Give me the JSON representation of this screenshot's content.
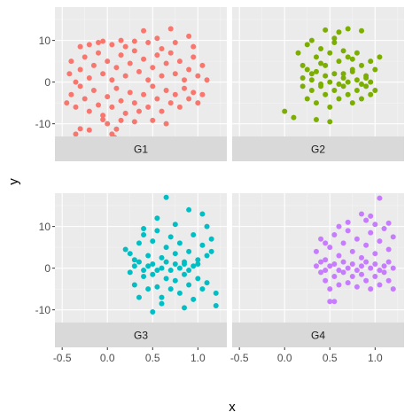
{
  "chart_data": {
    "type": "scatter",
    "xlabel": "x",
    "ylabel": "y",
    "xlim": [
      -0.58,
      1.32
    ],
    "ylim": [
      -19,
      18
    ],
    "x_ticks": [
      {
        "value": -0.5,
        "label": "-0.5"
      },
      {
        "value": 0.0,
        "label": "0.0"
      },
      {
        "value": 0.5,
        "label": "0.5"
      },
      {
        "value": 1.0,
        "label": "1.0"
      }
    ],
    "y_ticks": [
      {
        "value": 10,
        "label": "10"
      },
      {
        "value": 0,
        "label": "0"
      },
      {
        "value": -10,
        "label": "-10"
      }
    ],
    "grid": true,
    "legend": "none",
    "facet_strip_position": "bottom",
    "panel_background": "#ebebeb",
    "strip_background": "#d9d9d9",
    "grid_major_color": "#ffffff",
    "facets": [
      {
        "label": "G1",
        "color": "#f8766d",
        "points": [
          [
            -0.35,
            -12.5
          ],
          [
            -0.3,
            -11.2
          ],
          [
            -0.2,
            -11.5
          ],
          [
            0.05,
            -12.5
          ],
          [
            0.08,
            -13.3
          ],
          [
            0.1,
            -11.3
          ],
          [
            0.0,
            -10.0
          ],
          [
            -0.05,
            -9.0
          ],
          [
            0.15,
            -9.2
          ],
          [
            0.3,
            -9.5
          ],
          [
            0.5,
            -9.2
          ],
          [
            0.65,
            -10.0
          ],
          [
            -0.45,
            -5.0
          ],
          [
            -0.4,
            -3.0
          ],
          [
            -0.35,
            -6.0
          ],
          [
            -0.3,
            -1.0
          ],
          [
            -0.25,
            -4.0
          ],
          [
            -0.2,
            -7.0
          ],
          [
            -0.15,
            -2.0
          ],
          [
            -0.1,
            -5.5
          ],
          [
            -0.05,
            -8.0
          ],
          [
            0.0,
            -3.5
          ],
          [
            0.05,
            -6.0
          ],
          [
            0.1,
            -1.5
          ],
          [
            0.15,
            -4.5
          ],
          [
            0.2,
            -7.5
          ],
          [
            0.25,
            -2.5
          ],
          [
            0.3,
            -5.0
          ],
          [
            0.35,
            -7.0
          ],
          [
            0.4,
            -3.0
          ],
          [
            0.45,
            -6.0
          ],
          [
            0.5,
            -1.0
          ],
          [
            0.55,
            -4.0
          ],
          [
            0.6,
            -7.0
          ],
          [
            0.65,
            -2.0
          ],
          [
            0.7,
            -5.0
          ],
          [
            0.75,
            -3.0
          ],
          [
            0.8,
            -6.0
          ],
          [
            0.85,
            -1.5
          ],
          [
            0.9,
            -4.0
          ],
          [
            0.95,
            -2.5
          ],
          [
            1.0,
            -5.0
          ],
          [
            1.05,
            -3.0
          ],
          [
            -0.42,
            2.0
          ],
          [
            -0.4,
            5.0
          ],
          [
            -0.35,
            0.0
          ],
          [
            -0.3,
            3.0
          ],
          [
            -0.25,
            6.0
          ],
          [
            -0.2,
            1.0
          ],
          [
            -0.15,
            4.0
          ],
          [
            -0.1,
            7.0
          ],
          [
            -0.05,
            2.0
          ],
          [
            0.0,
            5.0
          ],
          [
            0.05,
            0.5
          ],
          [
            0.1,
            3.5
          ],
          [
            0.15,
            6.5
          ],
          [
            0.2,
            1.5
          ],
          [
            0.25,
            4.5
          ],
          [
            0.3,
            7.5
          ],
          [
            0.35,
            2.5
          ],
          [
            0.4,
            5.5
          ],
          [
            0.45,
            0.5
          ],
          [
            0.5,
            3.5
          ],
          [
            0.55,
            6.5
          ],
          [
            0.6,
            1.5
          ],
          [
            0.65,
            4.5
          ],
          [
            0.7,
            7.0
          ],
          [
            0.75,
            2.0
          ],
          [
            0.8,
            5.0
          ],
          [
            0.85,
            0.5
          ],
          [
            0.9,
            3.0
          ],
          [
            0.95,
            6.0
          ],
          [
            1.0,
            1.5
          ],
          [
            1.05,
            4.0
          ],
          [
            1.1,
            0.5
          ],
          [
            -0.3,
            8.5
          ],
          [
            -0.1,
            9.5
          ],
          [
            0.05,
            9.0
          ],
          [
            0.2,
            8.5
          ],
          [
            0.45,
            9.5
          ],
          [
            0.6,
            8.0
          ],
          [
            0.75,
            9.5
          ],
          [
            0.95,
            8.5
          ],
          [
            -0.05,
            9.8
          ],
          [
            0.15,
            10.0
          ],
          [
            0.4,
            12.3
          ],
          [
            0.7,
            12.8
          ],
          [
            0.55,
            10.5
          ],
          [
            0.9,
            11.0
          ],
          [
            0.3,
            9.8
          ],
          [
            -0.2,
            9.0
          ]
        ]
      },
      {
        "label": "G2",
        "color": "#7cae00",
        "points": [
          [
            0.15,
            7.0
          ],
          [
            0.2,
            4.0
          ],
          [
            0.25,
            9.0
          ],
          [
            0.3,
            2.0
          ],
          [
            0.35,
            6.0
          ],
          [
            0.4,
            8.0
          ],
          [
            0.45,
            4.0
          ],
          [
            0.5,
            7.0
          ],
          [
            0.55,
            9.5
          ],
          [
            0.6,
            5.0
          ],
          [
            0.65,
            2.0
          ],
          [
            0.7,
            6.0
          ],
          [
            0.75,
            3.0
          ],
          [
            0.8,
            7.0
          ],
          [
            0.85,
            4.0
          ],
          [
            0.9,
            1.0
          ],
          [
            0.95,
            5.0
          ],
          [
            1.0,
            3.0
          ],
          [
            1.05,
            6.0
          ],
          [
            0.2,
            -1.0
          ],
          [
            0.25,
            -4.0
          ],
          [
            0.3,
            -2.0
          ],
          [
            0.35,
            -5.0
          ],
          [
            0.4,
            -1.0
          ],
          [
            0.45,
            -3.0
          ],
          [
            0.5,
            -6.0
          ],
          [
            0.55,
            -2.0
          ],
          [
            0.6,
            -4.0
          ],
          [
            0.65,
            -1.0
          ],
          [
            0.7,
            -3.0
          ],
          [
            0.75,
            -5.0
          ],
          [
            0.8,
            -2.0
          ],
          [
            0.85,
            -4.0
          ],
          [
            0.9,
            -1.0
          ],
          [
            0.95,
            -3.0
          ],
          [
            1.0,
            -2.0
          ],
          [
            0.3,
            0.5
          ],
          [
            0.35,
            2.5
          ],
          [
            0.4,
            -0.5
          ],
          [
            0.45,
            1.5
          ],
          [
            0.5,
            0.0
          ],
          [
            0.55,
            2.0
          ],
          [
            0.6,
            -0.5
          ],
          [
            0.65,
            1.0
          ],
          [
            0.7,
            0.0
          ],
          [
            0.75,
            2.5
          ],
          [
            0.8,
            0.5
          ],
          [
            0.85,
            -0.5
          ],
          [
            0.9,
            1.5
          ],
          [
            0.95,
            0.0
          ],
          [
            0.0,
            -7.0
          ],
          [
            0.1,
            -8.5
          ],
          [
            0.35,
            -9.0
          ],
          [
            0.5,
            -9.5
          ],
          [
            0.45,
            12.5
          ],
          [
            0.6,
            12.0
          ],
          [
            0.7,
            12.8
          ],
          [
            0.85,
            12.3
          ],
          [
            0.3,
            10.0
          ],
          [
            0.55,
            10.5
          ],
          [
            0.25,
            3.0
          ],
          [
            0.75,
            5.5
          ],
          [
            0.4,
            4.5
          ],
          [
            0.65,
            7.5
          ],
          [
            0.2,
            1.0
          ]
        ]
      },
      {
        "label": "G3",
        "color": "#00bfc4",
        "points": [
          [
            0.2,
            4.5
          ],
          [
            0.3,
            2.0
          ],
          [
            0.35,
            6.0
          ],
          [
            0.4,
            8.0
          ],
          [
            0.45,
            3.0
          ],
          [
            0.5,
            6.5
          ],
          [
            0.55,
            9.0
          ],
          [
            0.6,
            2.5
          ],
          [
            0.65,
            5.0
          ],
          [
            0.7,
            7.5
          ],
          [
            0.75,
            3.5
          ],
          [
            0.8,
            6.0
          ],
          [
            0.85,
            1.0
          ],
          [
            0.9,
            4.0
          ],
          [
            0.95,
            8.0
          ],
          [
            1.0,
            2.0
          ],
          [
            1.05,
            5.5
          ],
          [
            1.1,
            3.0
          ],
          [
            1.15,
            7.0
          ],
          [
            0.25,
            -1.0
          ],
          [
            0.3,
            -4.0
          ],
          [
            0.35,
            -7.0
          ],
          [
            0.4,
            -2.0
          ],
          [
            0.45,
            -5.0
          ],
          [
            0.5,
            -1.5
          ],
          [
            0.55,
            -4.5
          ],
          [
            0.6,
            -7.0
          ],
          [
            0.65,
            -2.5
          ],
          [
            0.7,
            -5.0
          ],
          [
            0.75,
            -3.0
          ],
          [
            0.8,
            -6.0
          ],
          [
            0.85,
            -1.5
          ],
          [
            0.9,
            -4.0
          ],
          [
            0.95,
            -7.5
          ],
          [
            1.0,
            -2.5
          ],
          [
            1.05,
            -5.0
          ],
          [
            1.1,
            -3.5
          ],
          [
            1.2,
            -6.0
          ],
          [
            0.3,
            0.5
          ],
          [
            0.35,
            1.5
          ],
          [
            0.4,
            -0.5
          ],
          [
            0.45,
            0.5
          ],
          [
            0.5,
            1.0
          ],
          [
            0.55,
            -0.5
          ],
          [
            0.6,
            0.0
          ],
          [
            0.65,
            1.5
          ],
          [
            0.7,
            -0.5
          ],
          [
            0.75,
            1.0
          ],
          [
            0.8,
            0.0
          ],
          [
            0.85,
            1.5
          ],
          [
            0.9,
            -0.5
          ],
          [
            0.95,
            0.5
          ],
          [
            1.0,
            1.0
          ],
          [
            0.5,
            -10.5
          ],
          [
            0.85,
            -9.5
          ],
          [
            1.2,
            -9.0
          ],
          [
            0.65,
            17.0
          ],
          [
            0.9,
            14.0
          ],
          [
            1.05,
            13.0
          ],
          [
            0.55,
            12.0
          ],
          [
            0.75,
            10.5
          ],
          [
            1.1,
            10.0
          ],
          [
            0.4,
            9.5
          ],
          [
            0.25,
            3.5
          ],
          [
            1.15,
            4.0
          ],
          [
            0.6,
            -8.5
          ]
        ]
      },
      {
        "label": "G4",
        "color": "#c77cff",
        "points": [
          [
            0.35,
            4.0
          ],
          [
            0.4,
            7.0
          ],
          [
            0.45,
            2.0
          ],
          [
            0.5,
            5.0
          ],
          [
            0.55,
            8.0
          ],
          [
            0.6,
            3.0
          ],
          [
            0.65,
            6.0
          ],
          [
            0.7,
            9.0
          ],
          [
            0.75,
            4.0
          ],
          [
            0.8,
            7.0
          ],
          [
            0.85,
            2.5
          ],
          [
            0.9,
            5.5
          ],
          [
            0.95,
            8.5
          ],
          [
            1.0,
            3.5
          ],
          [
            1.05,
            6.5
          ],
          [
            1.1,
            9.5
          ],
          [
            1.15,
            4.5
          ],
          [
            1.2,
            7.5
          ],
          [
            0.4,
            -1.0
          ],
          [
            0.45,
            -3.0
          ],
          [
            0.5,
            -5.0
          ],
          [
            0.55,
            -2.0
          ],
          [
            0.6,
            -4.0
          ],
          [
            0.65,
            -1.0
          ],
          [
            0.7,
            -3.5
          ],
          [
            0.75,
            -2.0
          ],
          [
            0.8,
            -4.5
          ],
          [
            0.85,
            -1.5
          ],
          [
            0.9,
            -3.0
          ],
          [
            0.95,
            -5.0
          ],
          [
            1.0,
            -2.0
          ],
          [
            1.05,
            -4.0
          ],
          [
            1.1,
            -1.0
          ],
          [
            1.15,
            -3.0
          ],
          [
            1.2,
            -5.0
          ],
          [
            0.35,
            0.5
          ],
          [
            0.4,
            1.5
          ],
          [
            0.45,
            -0.5
          ],
          [
            0.5,
            0.5
          ],
          [
            0.55,
            1.0
          ],
          [
            0.6,
            -0.5
          ],
          [
            0.65,
            1.5
          ],
          [
            0.7,
            0.0
          ],
          [
            0.75,
            1.0
          ],
          [
            0.8,
            -0.5
          ],
          [
            0.85,
            0.5
          ],
          [
            0.9,
            1.5
          ],
          [
            0.95,
            0.0
          ],
          [
            1.0,
            1.0
          ],
          [
            1.05,
            -0.5
          ],
          [
            1.1,
            0.5
          ],
          [
            1.15,
            1.5
          ],
          [
            1.2,
            0.0
          ],
          [
            0.5,
            -8.0
          ],
          [
            0.55,
            -8.0
          ],
          [
            1.05,
            16.8
          ],
          [
            0.85,
            13.0
          ],
          [
            0.95,
            12.5
          ],
          [
            1.0,
            10.5
          ],
          [
            0.7,
            11.0
          ],
          [
            0.6,
            10.0
          ],
          [
            1.15,
            10.8
          ],
          [
            0.45,
            6.0
          ],
          [
            0.9,
            11.5
          ]
        ]
      }
    ]
  }
}
